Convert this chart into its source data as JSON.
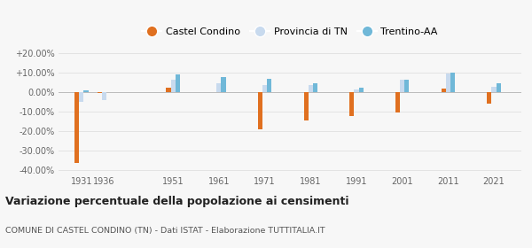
{
  "years": [
    1931,
    1936,
    1951,
    1961,
    1971,
    1981,
    1991,
    2001,
    2011,
    2021
  ],
  "castel_condino": [
    -36.5,
    -0.5,
    2.5,
    0.2,
    -19.0,
    -14.5,
    -12.5,
    -10.5,
    2.0,
    -6.0
  ],
  "provincia_tn": [
    -5.0,
    -4.0,
    6.5,
    4.5,
    3.5,
    3.5,
    1.5,
    6.5,
    9.5,
    3.0
  ],
  "trentino_aa": [
    1.0,
    0.2,
    9.0,
    8.0,
    7.0,
    4.5,
    2.5,
    6.5,
    10.0,
    4.5
  ],
  "color_castel": "#e07020",
  "color_provincia": "#c8daee",
  "color_trentino": "#70b8d8",
  "title": "Variazione percentuale della popolazione ai censimenti",
  "subtitle": "COMUNE DI CASTEL CONDINO (TN) - Dati ISTAT - Elaborazione TUTTITALIA.IT",
  "legend_labels": [
    "Castel Condino",
    "Provincia di TN",
    "Trentino-AA"
  ],
  "ylim": [
    -42,
    22
  ],
  "yticks": [
    -40,
    -30,
    -20,
    -10,
    0,
    10,
    20
  ],
  "ytick_labels": [
    "-40.00%",
    "-30.00%",
    "-20.00%",
    "-10.00%",
    "0.00%",
    "+10.00%",
    "+20.00%"
  ],
  "background_color": "#f7f7f7",
  "grid_color": "#e0e0e0"
}
